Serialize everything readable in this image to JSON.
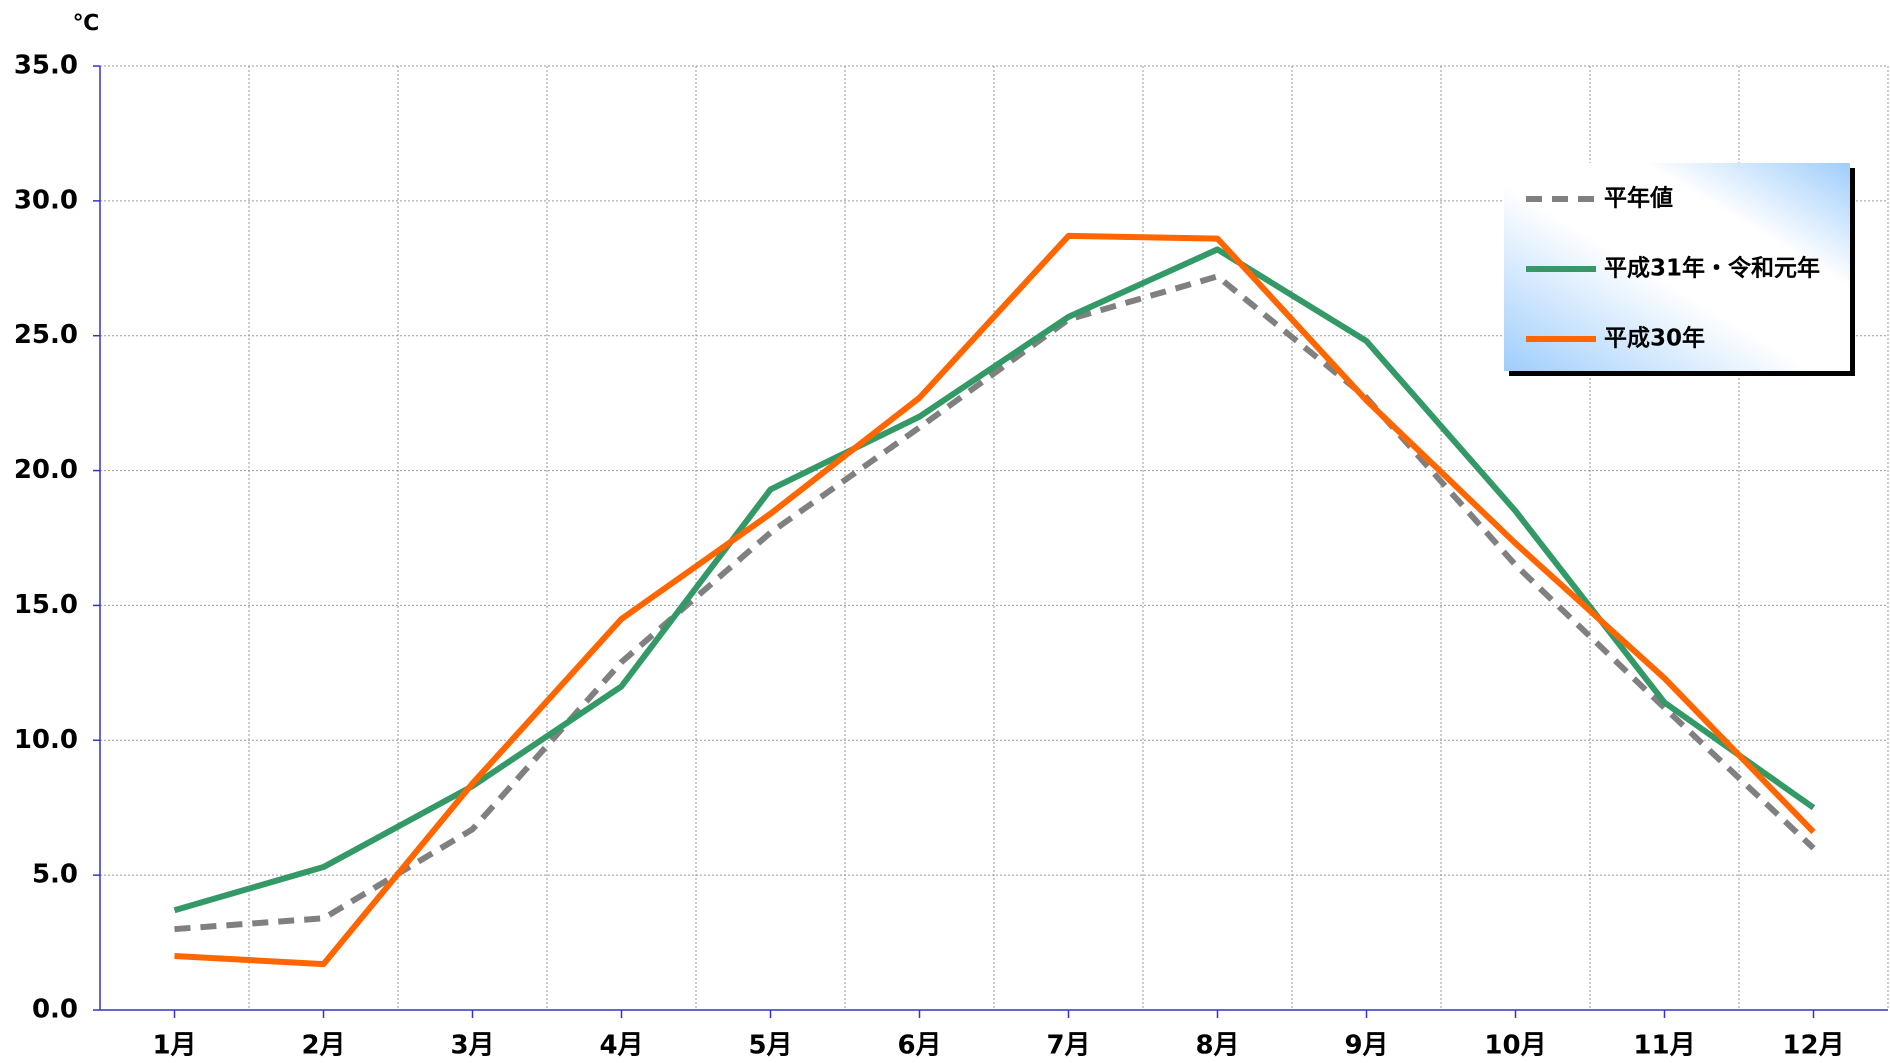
{
  "chart_data": {
    "type": "line",
    "unit_label": "℃",
    "categories": [
      "1月",
      "2月",
      "3月",
      "4月",
      "5月",
      "6月",
      "7月",
      "8月",
      "9月",
      "10月",
      "11月",
      "12月"
    ],
    "series": [
      {
        "name": "平年値",
        "color": "#808080",
        "style": "dashed",
        "values": [
          3.0,
          3.4,
          6.7,
          12.9,
          17.7,
          21.6,
          25.6,
          27.2,
          22.7,
          16.5,
          11.2,
          6.0
        ]
      },
      {
        "name": "平成31年・令和元年",
        "color": "#339966",
        "style": "solid",
        "values": [
          3.7,
          5.3,
          8.3,
          12.0,
          19.3,
          22.0,
          25.7,
          28.2,
          24.8,
          18.5,
          11.4,
          7.5
        ]
      },
      {
        "name": "平成30年",
        "color": "#ff6600",
        "style": "solid",
        "values": [
          2.0,
          1.7,
          8.4,
          14.5,
          18.4,
          22.7,
          28.7,
          28.6,
          22.6,
          17.3,
          12.3,
          6.6
        ]
      }
    ],
    "ylim": [
      0,
      35
    ],
    "yticks": [
      {
        "value": 0,
        "label": "0.0"
      },
      {
        "value": 5,
        "label": "5.0"
      },
      {
        "value": 10,
        "label": "10.0"
      },
      {
        "value": 15,
        "label": "15.0"
      },
      {
        "value": 20,
        "label": "20.0"
      },
      {
        "value": 25,
        "label": "25.0"
      },
      {
        "value": 30,
        "label": "30.0"
      },
      {
        "value": 35,
        "label": "35.0"
      }
    ],
    "grid": true,
    "legend_position": "upper right"
  }
}
